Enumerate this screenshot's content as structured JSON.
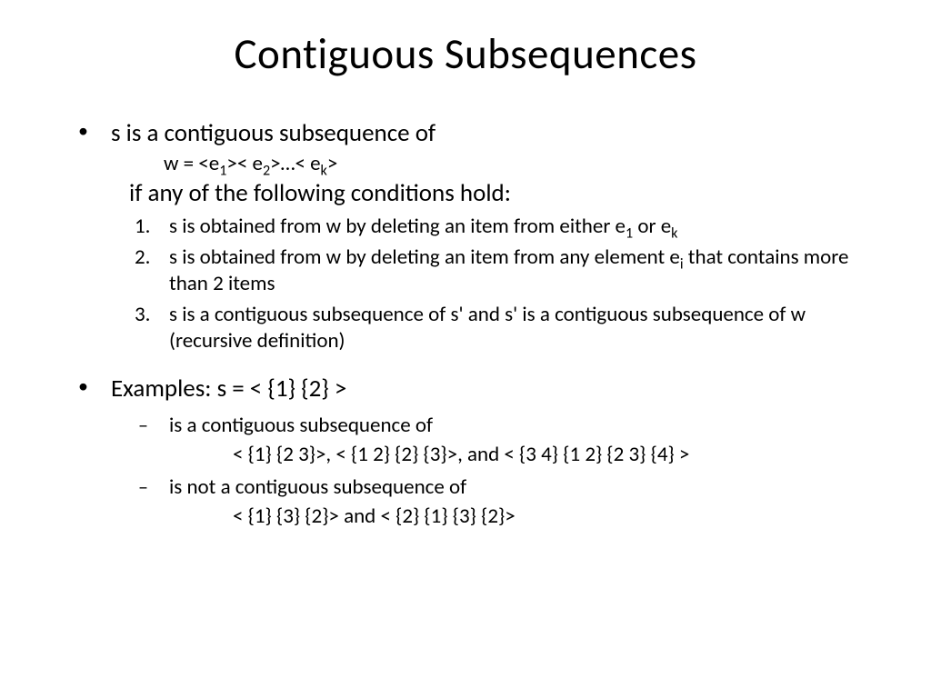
{
  "title": "Contiguous Subsequences",
  "b1": {
    "lead": "s is a contiguous subsequence of",
    "w_prefix": "w = <e",
    "w_s1": "1",
    "w_m1": ">< e",
    "w_s2": "2",
    "w_m2": ">…< e",
    "w_s3": "k",
    "w_suffix": ">",
    "cond": "if any of the following conditions hold:"
  },
  "n1": {
    "num": "1.",
    "t1": "s is obtained from w by deleting an item from either e",
    "s1": "1",
    "t2": " or e",
    "s2": "k"
  },
  "n2": {
    "num": "2.",
    "t1": "s is obtained from w by deleting an item from any element e",
    "s1": "i",
    "t2": " that contains more than 2 items"
  },
  "n3": {
    "num": "3.",
    "t1": "s is a contiguous subsequence of s' and s' is a contiguous subsequence of w (recursive definition)"
  },
  "b2": {
    "lead": "Examples: s = < {1} {2} >"
  },
  "d1": {
    "lead": "is a contiguous subsequence of",
    "detail": "< {1} {2 3}>, < {1 2} {2} {3}>, and < {3 4} {1 2} {2 3} {4} >"
  },
  "d2": {
    "lead": "is not a contiguous subsequence of",
    "detail": "< {1} {3} {2}> and < {2} {1} {3} {2}>"
  },
  "glyph": {
    "bullet": "•",
    "dash": "–"
  },
  "colors": {
    "bg": "#ffffff",
    "text": "#000000"
  },
  "typography": {
    "title_fontsize": 47,
    "body_fontsize": 27,
    "sub_fontsize": 23,
    "font_family": "Calibri"
  }
}
